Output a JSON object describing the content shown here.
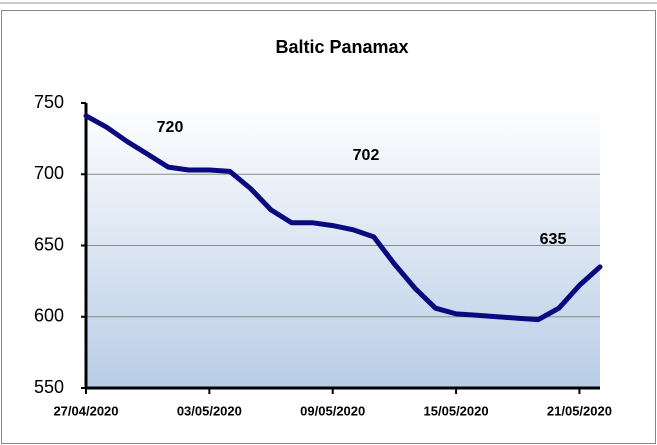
{
  "chart_data": {
    "type": "line",
    "title": "Baltic Panamax",
    "x": [
      "27/04/2020",
      "28/04/2020",
      "29/04/2020",
      "30/04/2020",
      "01/05/2020",
      "02/05/2020",
      "03/05/2020",
      "04/05/2020",
      "05/05/2020",
      "06/05/2020",
      "07/05/2020",
      "08/05/2020",
      "09/05/2020",
      "10/05/2020",
      "11/05/2020",
      "12/05/2020",
      "13/05/2020",
      "14/05/2020",
      "15/05/2020",
      "16/05/2020",
      "17/05/2020",
      "18/05/2020",
      "19/05/2020",
      "20/05/2020",
      "21/05/2020",
      "22/05/2020"
    ],
    "series": [
      {
        "name": "Baltic Panamax",
        "color": "#0a0a80",
        "values": [
          741,
          733,
          723,
          714,
          705,
          703,
          703,
          702,
          690,
          675,
          666,
          666,
          664,
          661,
          656,
          637,
          620,
          606,
          602,
          601,
          600,
          599,
          598,
          606,
          622,
          635
        ]
      }
    ],
    "annotations": [
      "720",
      "702",
      "635"
    ],
    "xlim": [
      "27/04/2020",
      "22/05/2020"
    ],
    "xticks": [
      "27/04/2020",
      "03/05/2020",
      "09/05/2020",
      "15/05/2020",
      "21/05/2020"
    ],
    "ylim": [
      550,
      750
    ],
    "yticks": [
      550,
      600,
      650,
      700,
      750
    ],
    "grid": true
  }
}
